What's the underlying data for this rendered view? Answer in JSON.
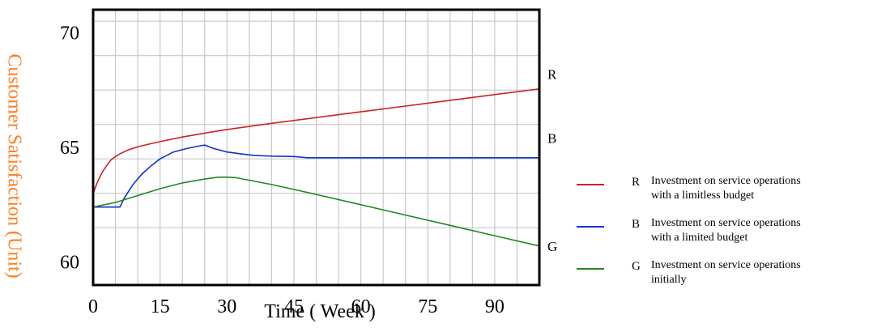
{
  "chart_data": {
    "type": "line",
    "title": "",
    "xlabel": "Time ( Week )",
    "ylabel": "Customer Satisfaction (Unit)",
    "xlim": [
      0,
      100
    ],
    "ylim": [
      59,
      71
    ],
    "xticks": [
      0,
      15,
      30,
      45,
      60,
      75,
      90
    ],
    "yticks": [
      60,
      65,
      70
    ],
    "grid": true,
    "legend_position": "right",
    "series": [
      {
        "name": "R",
        "legend": "Investment on service operations\nwith a limitless budget",
        "color": "#cc2222",
        "x": [
          0,
          1,
          2,
          3,
          4,
          5,
          6,
          8,
          10,
          12,
          15,
          20,
          25,
          30,
          40,
          50,
          60,
          70,
          80,
          90,
          100
        ],
        "y": [
          63.0,
          63.5,
          63.9,
          64.2,
          64.45,
          64.6,
          64.72,
          64.9,
          65.02,
          65.12,
          65.25,
          65.45,
          65.62,
          65.78,
          66.05,
          66.3,
          66.55,
          66.8,
          67.05,
          67.3,
          67.55
        ]
      },
      {
        "name": "B",
        "legend": "Investment on service operations\nwith a limited budget",
        "color": "#1133cc",
        "x": [
          0,
          3,
          6,
          7,
          9,
          11,
          13,
          15,
          18,
          21,
          24,
          25,
          27,
          30,
          33,
          36,
          40,
          45,
          48,
          55,
          70,
          85,
          100
        ],
        "y": [
          62.4,
          62.4,
          62.4,
          62.8,
          63.4,
          63.85,
          64.2,
          64.5,
          64.8,
          64.95,
          65.07,
          65.1,
          64.95,
          64.8,
          64.72,
          64.65,
          64.62,
          64.6,
          64.55,
          64.55,
          64.55,
          64.55,
          64.55
        ]
      },
      {
        "name": "G",
        "legend": "Investment on service operations\ninitially",
        "color": "#228822",
        "x": [
          0,
          5,
          10,
          15,
          20,
          25,
          28,
          30,
          32,
          40,
          50,
          60,
          70,
          80,
          90,
          100
        ],
        "y": [
          62.4,
          62.6,
          62.9,
          63.2,
          63.45,
          63.62,
          63.7,
          63.7,
          63.68,
          63.38,
          62.95,
          62.5,
          62.05,
          61.6,
          61.15,
          60.7
        ]
      }
    ]
  }
}
